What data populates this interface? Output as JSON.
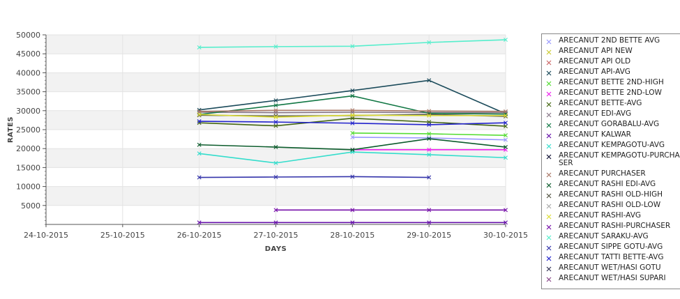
{
  "chart_data": {
    "type": "line",
    "xlabel": "DAYS",
    "ylabel": "RATES",
    "x": [
      "24-10-2015",
      "25-10-2015",
      "26-10-2015",
      "27-10-2015",
      "28-10-2015",
      "29-10-2015",
      "30-10-2015"
    ],
    "yticks": [
      5000,
      10000,
      15000,
      20000,
      25000,
      30000,
      35000,
      40000,
      45000,
      50000
    ],
    "ylim": [
      0,
      50000
    ],
    "grid": true,
    "legend_position": "right",
    "series": [
      {
        "name": "ARECANUT 2ND BETTE AVG",
        "color": "#9999ff",
        "values": [
          null,
          null,
          null,
          null,
          23000,
          22800,
          22300
        ]
      },
      {
        "name": "ARECANUT API NEW",
        "color": "#cccc33",
        "values": [
          null,
          null,
          null,
          null,
          null,
          null,
          null
        ]
      },
      {
        "name": "ARECANUT API OLD",
        "color": "#cc6666",
        "values": [
          null,
          null,
          null,
          null,
          null,
          null,
          null
        ]
      },
      {
        "name": "ARECANUT API-AVG",
        "color": "#1a4a5a",
        "values": [
          null,
          null,
          30200,
          32700,
          35300,
          38000,
          29200
        ]
      },
      {
        "name": "ARECANUT BETTE 2ND-HIGH",
        "color": "#55dd33",
        "values": [
          null,
          null,
          null,
          null,
          24100,
          23900,
          23500
        ]
      },
      {
        "name": "ARECANUT BETTE 2ND-LOW",
        "color": "#ee22ee",
        "values": [
          null,
          null,
          null,
          null,
          19700,
          19700,
          19700
        ]
      },
      {
        "name": "ARECANUT BETTE-AVG",
        "color": "#446611",
        "values": [
          null,
          null,
          26800,
          26000,
          28000,
          27000,
          25900
        ]
      },
      {
        "name": "ARECANUT EDI-AVG",
        "color": "#887788",
        "values": [
          null,
          null,
          29600,
          29500,
          29600,
          29500,
          29500
        ]
      },
      {
        "name": "ARECANUT GORABALU-AVG",
        "color": "#117744",
        "values": [
          null,
          null,
          29000,
          31400,
          33900,
          29300,
          29100
        ]
      },
      {
        "name": "ARECANUT KALWAR",
        "color": "#6611aa",
        "values": [
          null,
          null,
          500,
          500,
          500,
          500,
          500
        ]
      },
      {
        "name": "ARECANUT KEMPAGOTU-AVG",
        "color": "#33ddcc",
        "values": [
          null,
          null,
          18700,
          16200,
          19100,
          18400,
          17600
        ]
      },
      {
        "name": "ARECANUT KEMPAGOTU-PURCHASER",
        "color": "#111133",
        "values": [
          null,
          null,
          null,
          null,
          null,
          null,
          null
        ]
      },
      {
        "name": "ARECANUT PURCHASER",
        "color": "#aa7766",
        "values": [
          null,
          null,
          29800,
          30100,
          30100,
          29900,
          29800
        ]
      },
      {
        "name": "ARECANUT RASHI EDI-AVG",
        "color": "#0b5b2b",
        "values": [
          null,
          null,
          21000,
          20400,
          19700,
          22600,
          20400
        ]
      },
      {
        "name": "ARECANUT RASHI OLD-HIGH",
        "color": "#555544",
        "values": [
          null,
          null,
          28800,
          28600,
          28700,
          29000,
          28500
        ]
      },
      {
        "name": "ARECANUT RASHI OLD-LOW",
        "color": "#aaaaaa",
        "values": [
          null,
          null,
          null,
          null,
          null,
          null,
          null
        ]
      },
      {
        "name": "ARECANUT RASHI-AVG",
        "color": "#dddd33",
        "values": [
          null,
          null,
          29000,
          28300,
          28800,
          28700,
          28700
        ]
      },
      {
        "name": "ARECANUT RASHI-PURCHASER",
        "color": "#7711aa",
        "values": [
          null,
          null,
          null,
          3800,
          3800,
          3800,
          3800
        ]
      },
      {
        "name": "ARECANUT SARAKU-AVG",
        "color": "#55eecc",
        "values": [
          null,
          null,
          46700,
          46900,
          47000,
          48000,
          48700
        ]
      },
      {
        "name": "ARECANUT SIPPE GOTU-AVG",
        "color": "#3333aa",
        "values": [
          null,
          null,
          12400,
          12500,
          12600,
          12400,
          null
        ]
      },
      {
        "name": "ARECANUT TATTI BETTE-AVG",
        "color": "#2222cc",
        "values": [
          null,
          null,
          27200,
          27000,
          26700,
          26300,
          26800
        ]
      },
      {
        "name": "ARECANUT WET/HASI GOTU",
        "color": "#333355",
        "values": [
          null,
          null,
          null,
          null,
          null,
          null,
          null
        ]
      },
      {
        "name": "ARECANUT WET/HASI SUPARI",
        "color": "#884488",
        "values": [
          null,
          null,
          null,
          null,
          null,
          null,
          null
        ]
      }
    ]
  },
  "legend": {
    "labels": [
      "ARECANUT 2ND BETTE AVG",
      "ARECANUT API NEW",
      "ARECANUT API OLD",
      "ARECANUT API-AVG",
      "ARECANUT BETTE 2ND-HIGH",
      "ARECANUT BETTE 2ND-LOW",
      "ARECANUT BETTE-AVG",
      "ARECANUT EDI-AVG",
      "ARECANUT GORABALU-AVG",
      "ARECANUT KALWAR",
      "ARECANUT KEMPAGOTU-AVG",
      "ARECANUT KEMPAGOTU-PURCHA\nSER",
      "ARECANUT PURCHASER",
      "ARECANUT RASHI EDI-AVG",
      "ARECANUT RASHI OLD-HIGH",
      "ARECANUT RASHI OLD-LOW",
      "ARECANUT RASHI-AVG",
      "ARECANUT RASHI-PURCHASER",
      "ARECANUT SARAKU-AVG",
      "ARECANUT SIPPE GOTU-AVG",
      "ARECANUT TATTI BETTE-AVG",
      "ARECANUT WET/HASI GOTU",
      "ARECANUT WET/HASI SUPARI"
    ]
  }
}
